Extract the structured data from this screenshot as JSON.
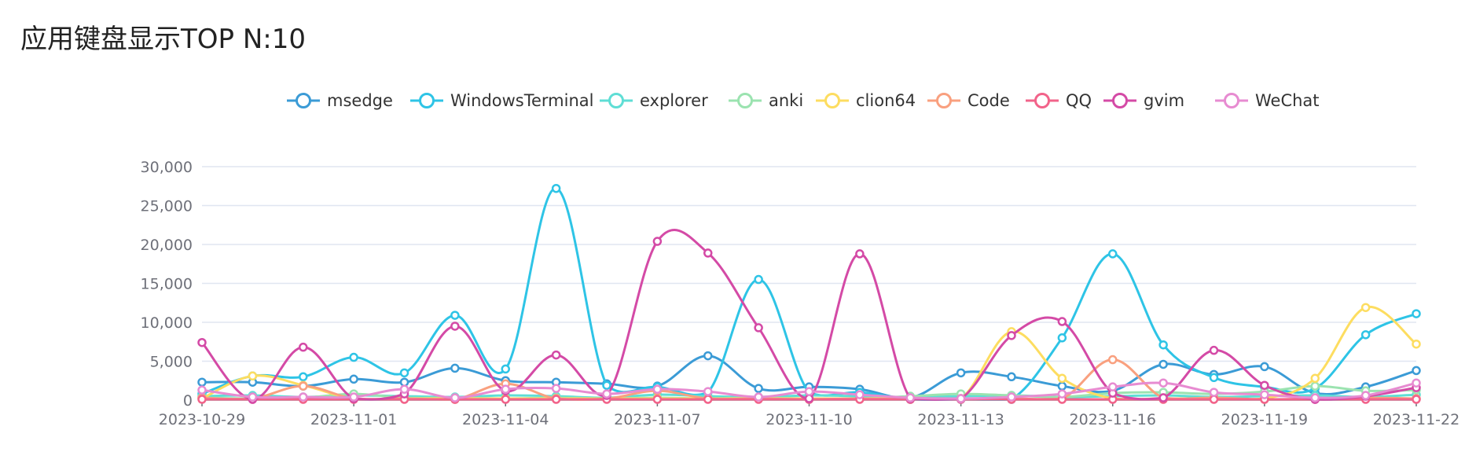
{
  "page": {
    "title": "应用键盘显示TOP N:10"
  },
  "chart_data": {
    "type": "line",
    "smooth": true,
    "title": "应用键盘显示TOP N:10",
    "x": [
      "2023-10-29",
      "2023-10-30",
      "2023-10-31",
      "2023-11-01",
      "2023-11-02",
      "2023-11-03",
      "2023-11-04",
      "2023-11-05",
      "2023-11-06",
      "2023-11-07",
      "2023-11-08",
      "2023-11-09",
      "2023-11-10",
      "2023-11-11",
      "2023-11-12",
      "2023-11-13",
      "2023-11-14",
      "2023-11-15",
      "2023-11-16",
      "2023-11-17",
      "2023-11-18",
      "2023-11-19",
      "2023-11-20",
      "2023-11-21",
      "2023-11-22"
    ],
    "x_tick_labels": [
      "2023-10-29",
      "2023-11-01",
      "2023-11-04",
      "2023-11-07",
      "2023-11-10",
      "2023-11-13",
      "2023-11-16",
      "2023-11-19",
      "2023-11-22"
    ],
    "ylim": [
      0,
      30000
    ],
    "y_ticks": [
      0,
      5000,
      10000,
      15000,
      20000,
      25000,
      30000
    ],
    "y_tick_labels": [
      "0",
      "5,000",
      "10,000",
      "15,000",
      "20,000",
      "25,000",
      "30,000"
    ],
    "grid": true,
    "legend_position": "top-center",
    "series": [
      {
        "name": "msedge",
        "color": "#3b9bd6",
        "values": [
          2300,
          2300,
          1800,
          2700,
          2300,
          4100,
          2500,
          2300,
          2100,
          1800,
          5700,
          1500,
          1700,
          1400,
          300,
          3500,
          3000,
          1800,
          1200,
          4600,
          3300,
          4300,
          900,
          1700,
          3800
        ]
      },
      {
        "name": "WindowsTerminal",
        "color": "#2ec4e6",
        "values": [
          800,
          3100,
          3000,
          5500,
          3500,
          10900,
          4000,
          27200,
          1900,
          1700,
          1000,
          15500,
          1000,
          1000,
          100,
          100,
          100,
          8000,
          18800,
          7100,
          2900,
          1700,
          1500,
          8400,
          11100
        ]
      },
      {
        "name": "explorer",
        "color": "#5fded5",
        "values": [
          500,
          600,
          400,
          600,
          500,
          400,
          600,
          500,
          300,
          700,
          500,
          400,
          600,
          500,
          400,
          500,
          600,
          400,
          500,
          600,
          400,
          500,
          600,
          400,
          700
        ]
      },
      {
        "name": "anki",
        "color": "#9be3b0",
        "values": [
          300,
          200,
          300,
          800,
          300,
          300,
          200,
          300,
          200,
          300,
          200,
          300,
          200,
          200,
          500,
          800,
          600,
          400,
          900,
          1000,
          800,
          1100,
          1800,
          1200,
          1300
        ]
      },
      {
        "name": "clion64",
        "color": "#fddd60",
        "values": [
          200,
          3100,
          1900,
          200,
          200,
          200,
          200,
          200,
          200,
          200,
          200,
          200,
          200,
          200,
          200,
          200,
          8800,
          2800,
          200,
          200,
          200,
          200,
          2800,
          11900,
          7200
        ]
      },
      {
        "name": "Code",
        "color": "#f9a07f",
        "values": [
          300,
          200,
          1800,
          200,
          200,
          100,
          2100,
          200,
          200,
          1200,
          200,
          200,
          100,
          200,
          100,
          200,
          200,
          200,
          5200,
          300,
          300,
          100,
          200,
          300,
          200
        ]
      },
      {
        "name": "QQ",
        "color": "#f2638a",
        "values": [
          100,
          100,
          100,
          100,
          100,
          100,
          100,
          100,
          100,
          100,
          100,
          100,
          100,
          100,
          100,
          100,
          100,
          100,
          100,
          100,
          100,
          100,
          100,
          100,
          100
        ]
      },
      {
        "name": "gvim",
        "color": "#d44aa6",
        "values": [
          7400,
          100,
          6800,
          200,
          800,
          9500,
          1200,
          5800,
          600,
          20400,
          18900,
          9300,
          200,
          18800,
          200,
          200,
          8300,
          10100,
          900,
          300,
          6400,
          1900,
          100,
          500,
          1600
        ]
      },
      {
        "name": "WeChat",
        "color": "#e78bd1",
        "values": [
          1300,
          400,
          400,
          400,
          1400,
          300,
          1400,
          1500,
          800,
          1400,
          1100,
          400,
          1100,
          700,
          300,
          200,
          400,
          800,
          1700,
          2200,
          1000,
          700,
          300,
          600,
          2200
        ]
      }
    ]
  }
}
